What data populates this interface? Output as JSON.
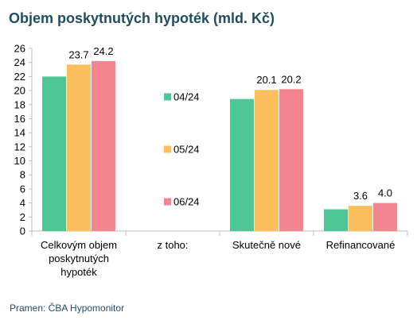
{
  "title": "Objem poskytnutých hypoték (mld. Kč)",
  "source": "Pramen: ČBA Hypomonitor",
  "colors": {
    "title": "#1f4e5f",
    "source": "#1f4e6f",
    "axis": "#bfbfbf",
    "series": [
      "#4dc796",
      "#fcbf5e",
      "#f4858e"
    ]
  },
  "chart_data": {
    "type": "bar",
    "categories": [
      "Celkovým objem poskytnutých hypoték",
      "z toho:",
      "Skutečně nové",
      "Refinancované"
    ],
    "category_lines": [
      [
        "Celkovým objem",
        "poskytnutých",
        "hypoték"
      ],
      [
        "z toho:"
      ],
      [
        "Skutečně nové"
      ],
      [
        "Refinancované"
      ]
    ],
    "series": [
      {
        "name": "04/24",
        "values": [
          22.0,
          null,
          18.8,
          3.1
        ]
      },
      {
        "name": "05/24",
        "values": [
          23.7,
          null,
          20.1,
          3.6
        ]
      },
      {
        "name": "06/24",
        "values": [
          24.2,
          null,
          20.2,
          4.0
        ]
      }
    ],
    "data_labels": [
      [
        null,
        null,
        null,
        null
      ],
      [
        "23.7",
        null,
        "20.1",
        "3.6"
      ],
      [
        "24.2",
        null,
        "20.2",
        "4.0"
      ]
    ],
    "ylim": [
      0,
      26
    ],
    "yticks": [
      0,
      2,
      4,
      6,
      8,
      10,
      12,
      14,
      16,
      18,
      20,
      22,
      24,
      26
    ],
    "grid": false,
    "legend": "center",
    "xlabel": "",
    "ylabel": ""
  }
}
